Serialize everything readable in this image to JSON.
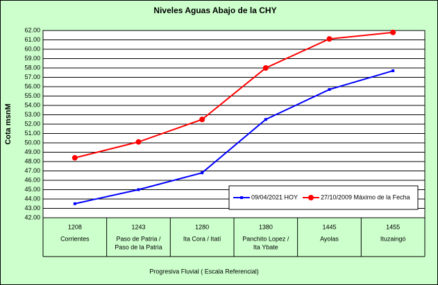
{
  "chart_data": {
    "type": "line",
    "title": "Niveles Aguas Abajo de la CHY",
    "y_label": "Cota msnM",
    "x_label": "Progresiva Fluvial ( Escala Referencial)",
    "categories": [
      "1208",
      "1243",
      "1280",
      "1380",
      "1445",
      "1455"
    ],
    "category_names": [
      [
        "Corrientes"
      ],
      [
        "Paso de Patria /",
        "Paso de la Patria"
      ],
      [
        "Ita Cora / Itatí"
      ],
      [
        "Panchito Lopez /",
        "Ita Ybate"
      ],
      [
        "Ayolas"
      ],
      [
        "Ituzaingó"
      ]
    ],
    "series": [
      {
        "name": "09/04/2021 HOY",
        "color": "#0000ff",
        "marker": "square",
        "values": [
          43.5,
          45.0,
          46.8,
          52.5,
          55.7,
          57.7
        ]
      },
      {
        "name": "27/10/2009 Máximo de la Fecha",
        "color": "#ff0000",
        "marker": "circle",
        "values": [
          48.4,
          50.1,
          52.5,
          58.0,
          61.1,
          61.8
        ]
      }
    ],
    "ylim": [
      42,
      62
    ],
    "yticks": [
      {
        "value": 42,
        "label": "42.00"
      },
      {
        "value": 43,
        "label": "43.00"
      },
      {
        "value": 44,
        "label": "44.00"
      },
      {
        "value": 45,
        "label": "45.00"
      },
      {
        "value": 46,
        "label": "46.00"
      },
      {
        "value": 47,
        "label": "47.00"
      },
      {
        "value": 48,
        "label": "48.00"
      },
      {
        "value": 49,
        "label": "49.00"
      },
      {
        "value": 50,
        "label": "50.00"
      },
      {
        "value": 51,
        "label": "51.00"
      },
      {
        "value": 52,
        "label": "52.00"
      },
      {
        "value": 53,
        "label": "53.00"
      },
      {
        "value": 54,
        "label": "54.00"
      },
      {
        "value": 55,
        "label": "55.00"
      },
      {
        "value": 56,
        "label": "56.00"
      },
      {
        "value": 57,
        "label": "57.00"
      },
      {
        "value": 58,
        "label": "58.00"
      },
      {
        "value": 59,
        "label": "59.00"
      },
      {
        "value": 60,
        "label": "60.00"
      },
      {
        "value": 61,
        "label": "61.00"
      },
      {
        "value": 62,
        "label": "62.00"
      }
    ],
    "grid": true
  }
}
